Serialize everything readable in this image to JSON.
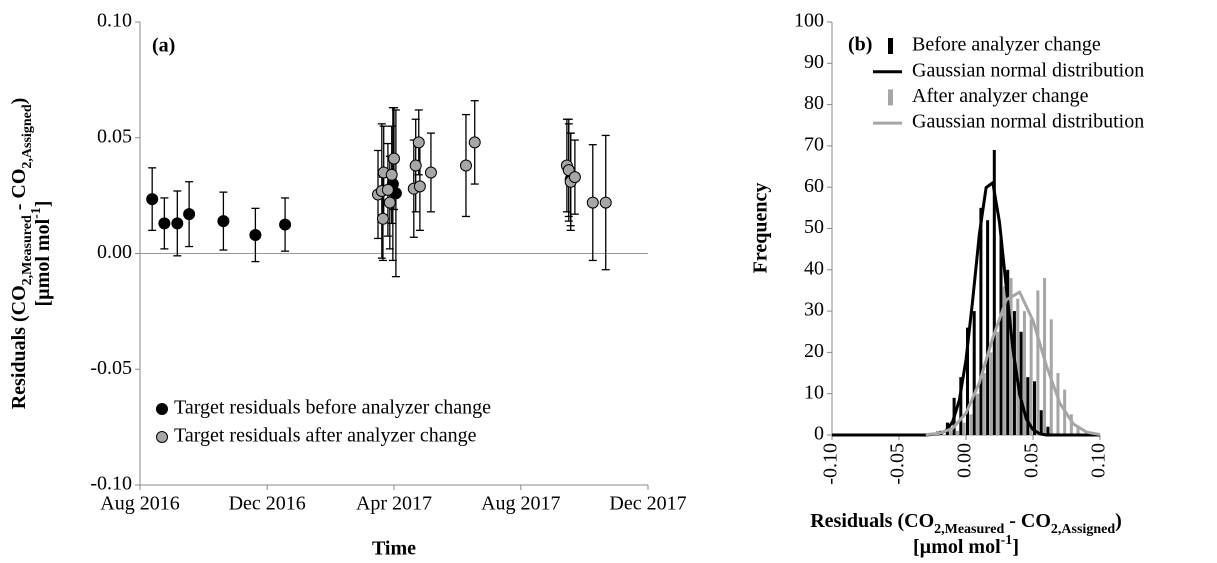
{
  "chart_data": [
    {
      "type": "scatter",
      "annotation": "(a)",
      "ylabel": [
        "Residuals (CO",
        "2,Measured",
        " - CO",
        "2,Assigned",
        ")"
      ],
      "ylabel_unit": [
        "[µmol mol",
        "-1",
        "]"
      ],
      "xlabel": "Time",
      "xlim": [
        2016.583,
        2017.917
      ],
      "xticks": [
        {
          "value": 2016.583,
          "label": "Aug 2016"
        },
        {
          "value": 2016.917,
          "label": "Dec 2016"
        },
        {
          "value": 2017.25,
          "label": "Apr 2017"
        },
        {
          "value": 2017.583,
          "label": "Aug 2017"
        },
        {
          "value": 2017.917,
          "label": "Dec 2017"
        }
      ],
      "ylim": [
        -0.1,
        0.1
      ],
      "yticks": [
        {
          "value": 0.1,
          "label": "0.10"
        },
        {
          "value": 0.05,
          "label": "0.05"
        },
        {
          "value": 0,
          "label": "0.00"
        },
        {
          "value": -0.05,
          "label": "-0.05"
        },
        {
          "value": -0.1,
          "label": "-0.10"
        }
      ],
      "series": [
        {
          "name": "Target residuals before analyzer change",
          "color": "#000000",
          "x": [
            2016.615,
            2016.647,
            2016.681,
            2016.712,
            2016.802,
            2016.886,
            2016.964,
            2017.247,
            2017.255,
            2017.709,
            2017.714
          ],
          "values": [
            0.0235,
            0.013,
            0.013,
            0.017,
            0.014,
            0.008,
            0.0125,
            0.03,
            0.026,
            0.036,
            0.032
          ],
          "errors": [
            0.0135,
            0.011,
            0.014,
            0.014,
            0.0125,
            0.0115,
            0.0115,
            0.033,
            0.036,
            0.022,
            0.02
          ]
        },
        {
          "name": "Target residuals after analyzer change",
          "color": "#a6a6a6",
          "x": [
            2017.208,
            2017.218,
            2017.221,
            2017.223,
            2017.234,
            2017.239,
            2017.244,
            2017.25,
            2017.302,
            2017.307,
            2017.315,
            2017.318,
            2017.347,
            2017.439,
            2017.462,
            2017.704,
            2017.709,
            2017.714,
            2017.725,
            2017.772,
            2017.806
          ],
          "values": [
            0.0255,
            0.027,
            0.015,
            0.035,
            0.0275,
            0.022,
            0.034,
            0.041,
            0.028,
            0.038,
            0.048,
            0.029,
            0.035,
            0.038,
            0.048,
            0.038,
            0.036,
            0.031,
            0.033,
            0.022,
            0.022
          ],
          "errors": [
            0.019,
            0.029,
            0.018,
            0.02,
            0.02,
            0.02,
            0.021,
            0.022,
            0.021,
            0.02,
            0.014,
            0.019,
            0.017,
            0.022,
            0.018,
            0.02,
            0.02,
            0.021,
            0.016,
            0.025,
            0.029
          ]
        }
      ]
    },
    {
      "type": "histogram",
      "annotation": "(b)",
      "ylabel": "Frequency",
      "xlabel": [
        "Residuals (CO",
        "2,Measured",
        " - CO",
        "2,Assigned",
        ")"
      ],
      "xlabel_unit": [
        "[µmol mol",
        "-1",
        "]"
      ],
      "xlim": [
        -0.1,
        0.1
      ],
      "xticks": [
        {
          "value": -0.1,
          "label": "-0.10"
        },
        {
          "value": -0.05,
          "label": "-0.05"
        },
        {
          "value": 0,
          "label": "0.00"
        },
        {
          "value": 0.05,
          "label": "0.05"
        },
        {
          "value": 0.1,
          "label": "0.10"
        }
      ],
      "ylim": [
        0,
        100
      ],
      "yticks": [
        0,
        10,
        20,
        30,
        40,
        50,
        60,
        70,
        80,
        90,
        100
      ],
      "series": [
        {
          "name": "Before analyzer change",
          "type": "bar",
          "color": "#000000",
          "bins": [
            -0.02,
            -0.015,
            -0.01,
            -0.005,
            0,
            0.005,
            0.01,
            0.015,
            0.02,
            0.025,
            0.03,
            0.035,
            0.04,
            0.045,
            0.05,
            0.055,
            0.06,
            0.065
          ],
          "values": [
            1,
            3,
            9,
            14,
            26,
            30,
            55,
            52,
            69,
            48,
            40,
            30,
            25,
            14,
            13,
            6,
            2
          ]
        },
        {
          "name": "Gaussian normal distribution",
          "type": "line",
          "color": "#000000",
          "x": [
            -0.1,
            -0.03,
            -0.02,
            -0.015,
            -0.01,
            -0.005,
            0,
            0.005,
            0.01,
            0.015,
            0.02,
            0.025,
            0.03,
            0.035,
            0.04,
            0.045,
            0.05,
            0.055,
            0.06,
            0.1
          ],
          "values": [
            0,
            0,
            0.3,
            1,
            3.2,
            8.4,
            18.2,
            32.7,
            48.7,
            59.9,
            61.1,
            51.5,
            36,
            20.8,
            9.9,
            3.9,
            1.3,
            0.3,
            0,
            0
          ]
        },
        {
          "name": "After analyzer change",
          "type": "bar",
          "color": "#a6a6a6",
          "bins": [
            -0.025,
            -0.02,
            -0.015,
            -0.01,
            -0.005,
            0,
            0.005,
            0.01,
            0.015,
            0.02,
            0.025,
            0.03,
            0.035,
            0.04,
            0.045,
            0.05,
            0.055,
            0.06,
            0.065,
            0.07,
            0.075,
            0.08,
            0.085
          ],
          "values": [
            1,
            0,
            1,
            1,
            3,
            5,
            10,
            15,
            20,
            25,
            36,
            38,
            33,
            30,
            28,
            35,
            38,
            28,
            15,
            11,
            5,
            2
          ]
        },
        {
          "name": "Gaussian normal distribution",
          "type": "line",
          "color": "#a6a6a6",
          "x": [
            -0.03,
            -0.02,
            -0.01,
            0,
            0.01,
            0.02,
            0.03,
            0.04,
            0.05,
            0.06,
            0.07,
            0.08,
            0.09,
            0.1
          ],
          "values": [
            0.1,
            0.4,
            1.6,
            5.3,
            12.7,
            23.5,
            32.7,
            34.6,
            27.7,
            16.8,
            7.7,
            2.7,
            0.7,
            0.1
          ]
        }
      ]
    }
  ]
}
